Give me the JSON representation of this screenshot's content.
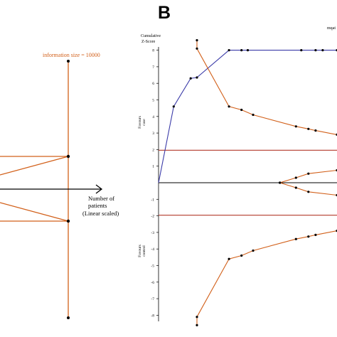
{
  "chart_data": [
    {
      "type": "line",
      "panel_label": "",
      "annotations": {
        "information_size": "information size = 10000",
        "axis_label_line1": "Number of",
        "axis_label_line2": "patients",
        "axis_label_line3": "(Linear scaled)"
      },
      "colors": {
        "boundary": "#d2601a",
        "axis": "#000000"
      }
    },
    {
      "type": "line",
      "panel_label": "B",
      "ylabel_line1": "Cumulative",
      "ylabel_line2": "Z-Score",
      "corner_label": "mqat",
      "favours_upper_line1": "Favours",
      "favours_upper_line2": "case",
      "favours_lower_line1": "Favours",
      "favours_lower_line2": "control",
      "ylim": [
        -8.6,
        8.8
      ],
      "y_ticks": [
        "-8",
        "-7",
        "-6",
        "-5",
        "-4",
        "-3",
        "-2",
        "-1",
        "1",
        "2",
        "3",
        "4",
        "5",
        "6",
        "7",
        "8"
      ],
      "y_tick_values": [
        -8,
        -7,
        -6,
        -5,
        -4,
        -3,
        -2,
        -1,
        1,
        2,
        3,
        4,
        5,
        6,
        7,
        8
      ],
      "xlim": [
        0,
        1
      ],
      "series": [
        {
          "role": "cumulative_z",
          "color": "#3a3aa8",
          "x": [
            0,
            0.085,
            0.18,
            0.215,
            0.395,
            0.465,
            0.5,
            0.8,
            0.88,
            0.92,
            1.0
          ],
          "y": [
            0,
            4.6,
            6.3,
            6.35,
            8.0,
            8.0,
            8.0,
            8.0,
            8.0,
            8.0,
            8.0
          ]
        },
        {
          "role": "upper_boundary",
          "color": "#d2601a",
          "x": [
            0.215,
            0.215,
            0.395,
            0.465,
            0.53,
            0.77,
            0.84,
            0.88,
            1.0
          ],
          "y": [
            8.6,
            8.1,
            4.6,
            4.4,
            4.1,
            3.4,
            3.25,
            3.15,
            2.9
          ]
        },
        {
          "role": "lower_boundary",
          "color": "#d2601a",
          "x": [
            0.215,
            0.215,
            0.395,
            0.465,
            0.53,
            0.77,
            0.84,
            0.88,
            1.0
          ],
          "y": [
            -8.6,
            -8.1,
            -4.6,
            -4.4,
            -4.1,
            -3.4,
            -3.25,
            -3.15,
            -2.9
          ]
        },
        {
          "role": "futility_upper",
          "color": "#d2601a",
          "x": [
            0.68,
            0.77,
            0.84,
            1.0
          ],
          "y": [
            0,
            0.3,
            0.55,
            0.75
          ]
        },
        {
          "role": "futility_lower",
          "color": "#d2601a",
          "x": [
            0.68,
            0.77,
            0.84,
            1.0
          ],
          "y": [
            0,
            -0.3,
            -0.55,
            -0.75
          ]
        }
      ],
      "reference_lines": [
        {
          "y": 1.96,
          "color": "#b23a2a"
        },
        {
          "y": -1.96,
          "color": "#b23a2a"
        },
        {
          "y": 0,
          "color": "#000000"
        }
      ]
    }
  ]
}
